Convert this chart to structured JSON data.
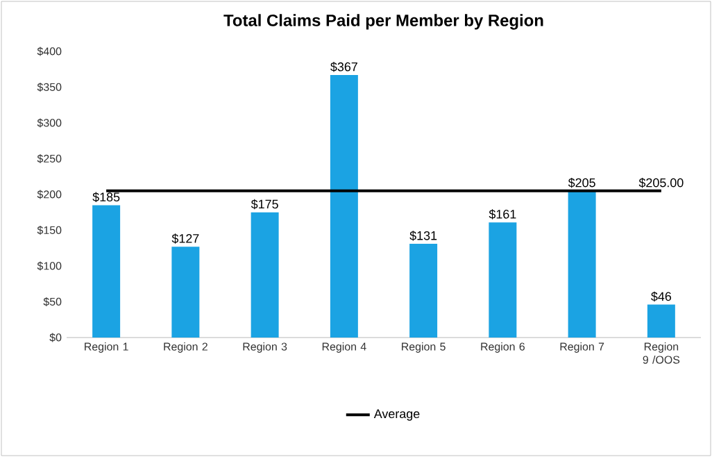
{
  "chart_data": {
    "type": "bar",
    "title": "Total Claims Paid per Member by Region",
    "categories": [
      "Region 1",
      "Region 2",
      "Region 3",
      "Region 4",
      "Region 5",
      "Region 6",
      "Region 7",
      "Region 9 /OOS"
    ],
    "series": [
      {
        "color": "#1ba3e3",
        "values": [
          185,
          127,
          175,
          367,
          131,
          161,
          205,
          46
        ],
        "value_labels": [
          "$185",
          "$127",
          "$175",
          "$367",
          "$131",
          "$161",
          "$205",
          "$46"
        ]
      },
      {
        "type": "line",
        "name": "Average",
        "color": "#000000",
        "values": [
          205,
          205,
          205,
          205,
          205,
          205,
          205,
          205
        ],
        "value_labels": [
          null,
          null,
          null,
          null,
          null,
          null,
          null,
          "$205.00"
        ]
      }
    ],
    "ylim": [
      0,
      400
    ],
    "yticks": [
      {
        "value": 0,
        "label": "$0"
      },
      {
        "value": 50,
        "label": "$50"
      },
      {
        "value": 100,
        "label": "$100"
      },
      {
        "value": 150,
        "label": "$150"
      },
      {
        "value": 200,
        "label": "$200"
      },
      {
        "value": 250,
        "label": "$250"
      },
      {
        "value": 300,
        "label": "$300"
      },
      {
        "value": 350,
        "label": "$350"
      },
      {
        "value": 400,
        "label": "$400"
      }
    ],
    "legend": "bottom"
  }
}
